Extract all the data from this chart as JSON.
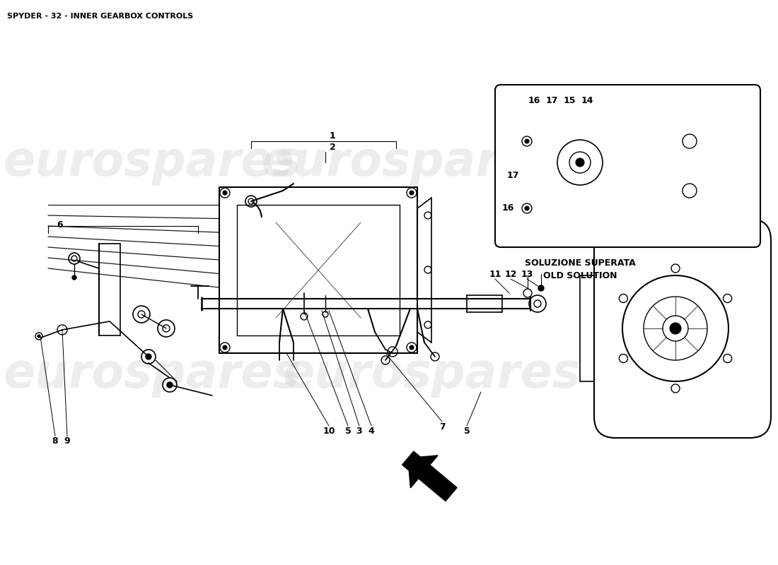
{
  "title": "SPYDER - 32 - INNER GEARBOX CONTROLS",
  "title_fontsize": 8,
  "title_fontweight": "bold",
  "bg_color": "#ffffff",
  "watermark_text": "eurospares",
  "watermark_color": "#cccccc",
  "watermark_alpha": 0.35,
  "watermark_fontsize": 48,
  "inset_caption_line1": "SOLUZIONE SUPERATA",
  "inset_caption_line2": "OLD SOLUTION",
  "label_fontsize": 9
}
